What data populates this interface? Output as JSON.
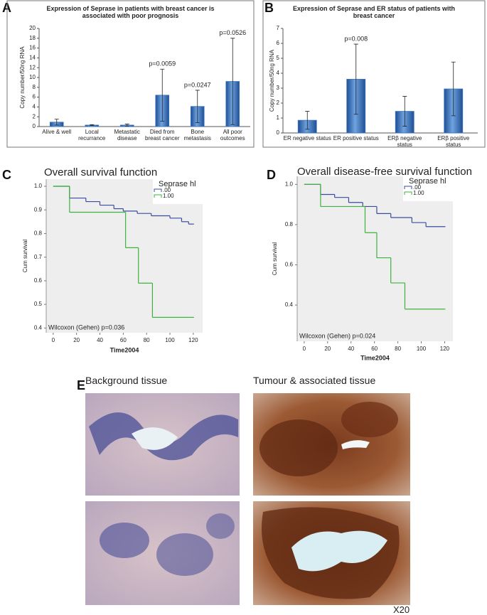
{
  "panel_labels": [
    "A",
    "B",
    "C",
    "D",
    "E"
  ],
  "chart_data": [
    {
      "type": "bar",
      "title": "Expression of Seprase in patients with breast cancer is associated with poor prognosis",
      "ylabel": "Copy number/50ng RNA",
      "categories": [
        "Alive & well",
        "Local recurrance",
        "Metastatic disease",
        "Died from breast cancer",
        "Bone metastasis",
        "All poor outcomes"
      ],
      "values": [
        0.9,
        0.3,
        0.3,
        6.4,
        4.1,
        9.2
      ],
      "errors": [
        0.6,
        0.1,
        0.2,
        5.3,
        3.3,
        8.8
      ],
      "annotations": [
        null,
        null,
        null,
        "p=0.0059",
        "p=0.0247",
        "p=0.0526"
      ],
      "color": "#3d76c2",
      "ylim": [
        0,
        20
      ],
      "yticks": [
        0,
        2,
        4,
        6,
        8,
        10,
        12,
        14,
        16,
        18,
        20
      ]
    },
    {
      "type": "bar",
      "title": "Expression of Seprase and ER status of patients with breast cancer",
      "ylabel": "Copy number/50ng RNA",
      "categories": [
        "ER negative status",
        "ER positive status",
        "ERβ negative status",
        "ERβ positive status"
      ],
      "values": [
        0.85,
        3.6,
        1.45,
        2.95
      ],
      "errors": [
        0.6,
        2.35,
        1.0,
        1.8
      ],
      "annotations": [
        null,
        "p=0.008",
        null,
        null
      ],
      "color": "#3d76c2",
      "ylim": [
        0,
        7
      ],
      "yticks": [
        0,
        1,
        2,
        3,
        4,
        5,
        6,
        7
      ]
    },
    {
      "type": "step",
      "title": "Overall survival function",
      "xlabel": "Time2004",
      "ylabel": "Cum survival",
      "legend_title": "Seprase hl",
      "annotation": "Wilcoxon (Gehen) p=0.036",
      "series": [
        {
          "name": ".00",
          "color": "#3a4c9e",
          "x": [
            0,
            14,
            28,
            40,
            52,
            60,
            72,
            84,
            100,
            110,
            116,
            120
          ],
          "values": [
            1.0,
            0.95,
            0.935,
            0.92,
            0.905,
            0.895,
            0.885,
            0.875,
            0.865,
            0.85,
            0.84,
            0.84
          ]
        },
        {
          "name": "1.00",
          "color": "#3cb33c",
          "x": [
            0,
            14,
            62,
            73,
            85,
            120
          ],
          "values": [
            1.0,
            0.89,
            0.74,
            0.59,
            0.445,
            0.445
          ]
        }
      ],
      "xlim": [
        -6,
        128
      ],
      "xticks": [
        0,
        20,
        40,
        60,
        80,
        100,
        120
      ],
      "ylim": [
        0.38,
        1.03
      ],
      "yticks": [
        0.4,
        0.5,
        0.6,
        0.7,
        0.8,
        0.9,
        {
          "value": 1,
          "label": "1.0"
        }
      ]
    },
    {
      "type": "step",
      "title": "Overall disease-free survival function",
      "xlabel": "Time2004",
      "ylabel": "Cum survival",
      "legend_title": "Seprase hl",
      "annotation": "Wilcoxon (Gehen) p=0.024",
      "series": [
        {
          "name": ".00",
          "color": "#3a4c9e",
          "x": [
            0,
            14,
            26,
            38,
            50,
            62,
            74,
            92,
            104,
            120
          ],
          "values": [
            1.0,
            0.95,
            0.935,
            0.91,
            0.89,
            0.855,
            0.835,
            0.81,
            0.79,
            0.79
          ]
        },
        {
          "name": "1.00",
          "color": "#3cb33c",
          "x": [
            0,
            14,
            52,
            62,
            74,
            86,
            120
          ],
          "values": [
            1.0,
            0.89,
            0.76,
            0.635,
            0.51,
            0.38,
            0.38
          ]
        }
      ],
      "xlim": [
        -6,
        127
      ],
      "xticks": [
        0,
        20,
        40,
        60,
        80,
        100,
        120
      ],
      "ylim": [
        0.22,
        1.04
      ],
      "yticks": [
        0.4,
        0.6,
        0.8,
        {
          "value": 1,
          "label": "1.0"
        }
      ]
    }
  ],
  "images": {
    "left_title": "Background tissue",
    "right_title": "Tumour & associated tissue",
    "magnification": "X20"
  }
}
